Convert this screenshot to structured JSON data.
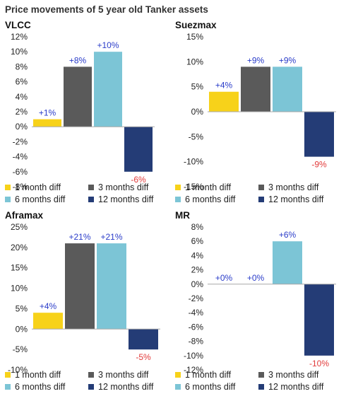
{
  "title": "Price movements of 5 year old Tanker assets",
  "legend": [
    {
      "label": "1 month diff",
      "color": "#f7d21a"
    },
    {
      "label": "3 months diff",
      "color": "#5a5a5a"
    },
    {
      "label": "6 months diff",
      "color": "#7cc5d6"
    },
    {
      "label": "12 months diff",
      "color": "#243c76"
    }
  ],
  "chart_data": [
    {
      "type": "bar",
      "title": "VLCC",
      "categories": [
        "1 month diff",
        "3 months diff",
        "6 months diff",
        "12 months diff"
      ],
      "values": [
        1,
        8,
        10,
        -6
      ],
      "labels": [
        "+1%",
        "+8%",
        "+10%",
        "-6%"
      ],
      "ylim": [
        -8,
        12
      ],
      "yticks": [
        12,
        10,
        8,
        6,
        4,
        2,
        0,
        -2,
        -4,
        -6,
        -8
      ],
      "ytick_labels": [
        "12%",
        "10%",
        "8%",
        "6%",
        "4%",
        "2%",
        "0%",
        "-2%",
        "-4%",
        "-6%",
        "-8%"
      ]
    },
    {
      "type": "bar",
      "title": "Suezmax",
      "categories": [
        "1 month diff",
        "3 months diff",
        "6 months diff",
        "12 months diff"
      ],
      "values": [
        4,
        9,
        9,
        -9
      ],
      "labels": [
        "+4%",
        "+9%",
        "+9%",
        "-9%"
      ],
      "ylim": [
        -15,
        15
      ],
      "yticks": [
        15,
        10,
        5,
        0,
        -5,
        -10,
        -15
      ],
      "ytick_labels": [
        "15%",
        "10%",
        "5%",
        "0%",
        "-5%",
        "-10%",
        "-15%"
      ]
    },
    {
      "type": "bar",
      "title": "Aframax",
      "categories": [
        "1 month diff",
        "3 months diff",
        "6 months diff",
        "12 months diff"
      ],
      "values": [
        4,
        21,
        21,
        -5
      ],
      "labels": [
        "+4%",
        "+21%",
        "+21%",
        "-5%"
      ],
      "ylim": [
        -10,
        25
      ],
      "yticks": [
        25,
        20,
        15,
        10,
        5,
        0,
        -5,
        -10
      ],
      "ytick_labels": [
        "25%",
        "20%",
        "15%",
        "10%",
        "5%",
        "0%",
        "-5%",
        "-10%"
      ]
    },
    {
      "type": "bar",
      "title": "MR",
      "categories": [
        "1 month diff",
        "3 months diff",
        "6 months diff",
        "12 months diff"
      ],
      "values": [
        0,
        0,
        6,
        -10
      ],
      "labels": [
        "+0%",
        "+0%",
        "+6%",
        "-10%"
      ],
      "ylim": [
        -12,
        8
      ],
      "yticks": [
        8,
        6,
        4,
        2,
        0,
        -2,
        -4,
        -6,
        -8,
        -10,
        -12
      ],
      "ytick_labels": [
        "8%",
        "6%",
        "4%",
        "2%",
        "0%",
        "-2%",
        "-4%",
        "-6%",
        "-8%",
        "-10%",
        "-12%"
      ]
    }
  ]
}
